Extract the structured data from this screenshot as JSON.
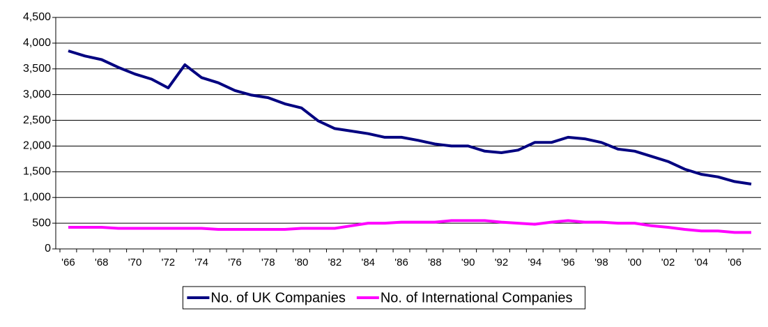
{
  "chart_data": {
    "type": "line",
    "categories": [
      "'66",
      null,
      "'68",
      null,
      "'70",
      null,
      "'72",
      null,
      "'74",
      null,
      "'76",
      null,
      "'78",
      null,
      "'80",
      null,
      "'82",
      null,
      "'84",
      null,
      "'86",
      null,
      "'88",
      null,
      "'90",
      null,
      "'92",
      null,
      "'94",
      null,
      "'96",
      null,
      "'98",
      null,
      "'00",
      null,
      "'02",
      null,
      "'04",
      null,
      "'06",
      null
    ],
    "series": [
      {
        "name": "No. of UK Companies",
        "color": "#000080",
        "values": [
          3850,
          3750,
          3680,
          3530,
          3400,
          3300,
          3130,
          3580,
          3330,
          3230,
          3080,
          2990,
          2940,
          2820,
          2740,
          2490,
          2340,
          2290,
          2240,
          2170,
          2170,
          2110,
          2040,
          2000,
          2000,
          1900,
          1870,
          1920,
          2070,
          2070,
          2170,
          2140,
          2070,
          1940,
          1900,
          1800,
          1700,
          1550,
          1450,
          1400,
          1310,
          1260
        ]
      },
      {
        "name": "No. of International Companies",
        "color": "#ff00ff",
        "values": [
          420,
          420,
          420,
          400,
          400,
          400,
          400,
          400,
          400,
          380,
          380,
          380,
          380,
          380,
          400,
          400,
          400,
          450,
          500,
          500,
          520,
          520,
          520,
          550,
          550,
          550,
          520,
          500,
          480,
          520,
          550,
          520,
          520,
          500,
          500,
          450,
          420,
          380,
          350,
          350,
          320,
          320
        ]
      }
    ],
    "ylim": [
      0,
      4500
    ],
    "yticks": [
      0,
      500,
      {
        "value": 1000,
        "label": "1,000"
      },
      {
        "value": 1500,
        "label": "1,500"
      },
      {
        "value": 2000,
        "label": "2,000"
      },
      {
        "value": 2500,
        "label": "2,500"
      },
      {
        "value": 3000,
        "label": "3,000"
      },
      {
        "value": 3500,
        "label": "3,500"
      },
      {
        "value": 4000,
        "label": "4,000"
      },
      {
        "value": 4500,
        "label": "4,500"
      }
    ],
    "grid": true,
    "legend": "bottom"
  }
}
